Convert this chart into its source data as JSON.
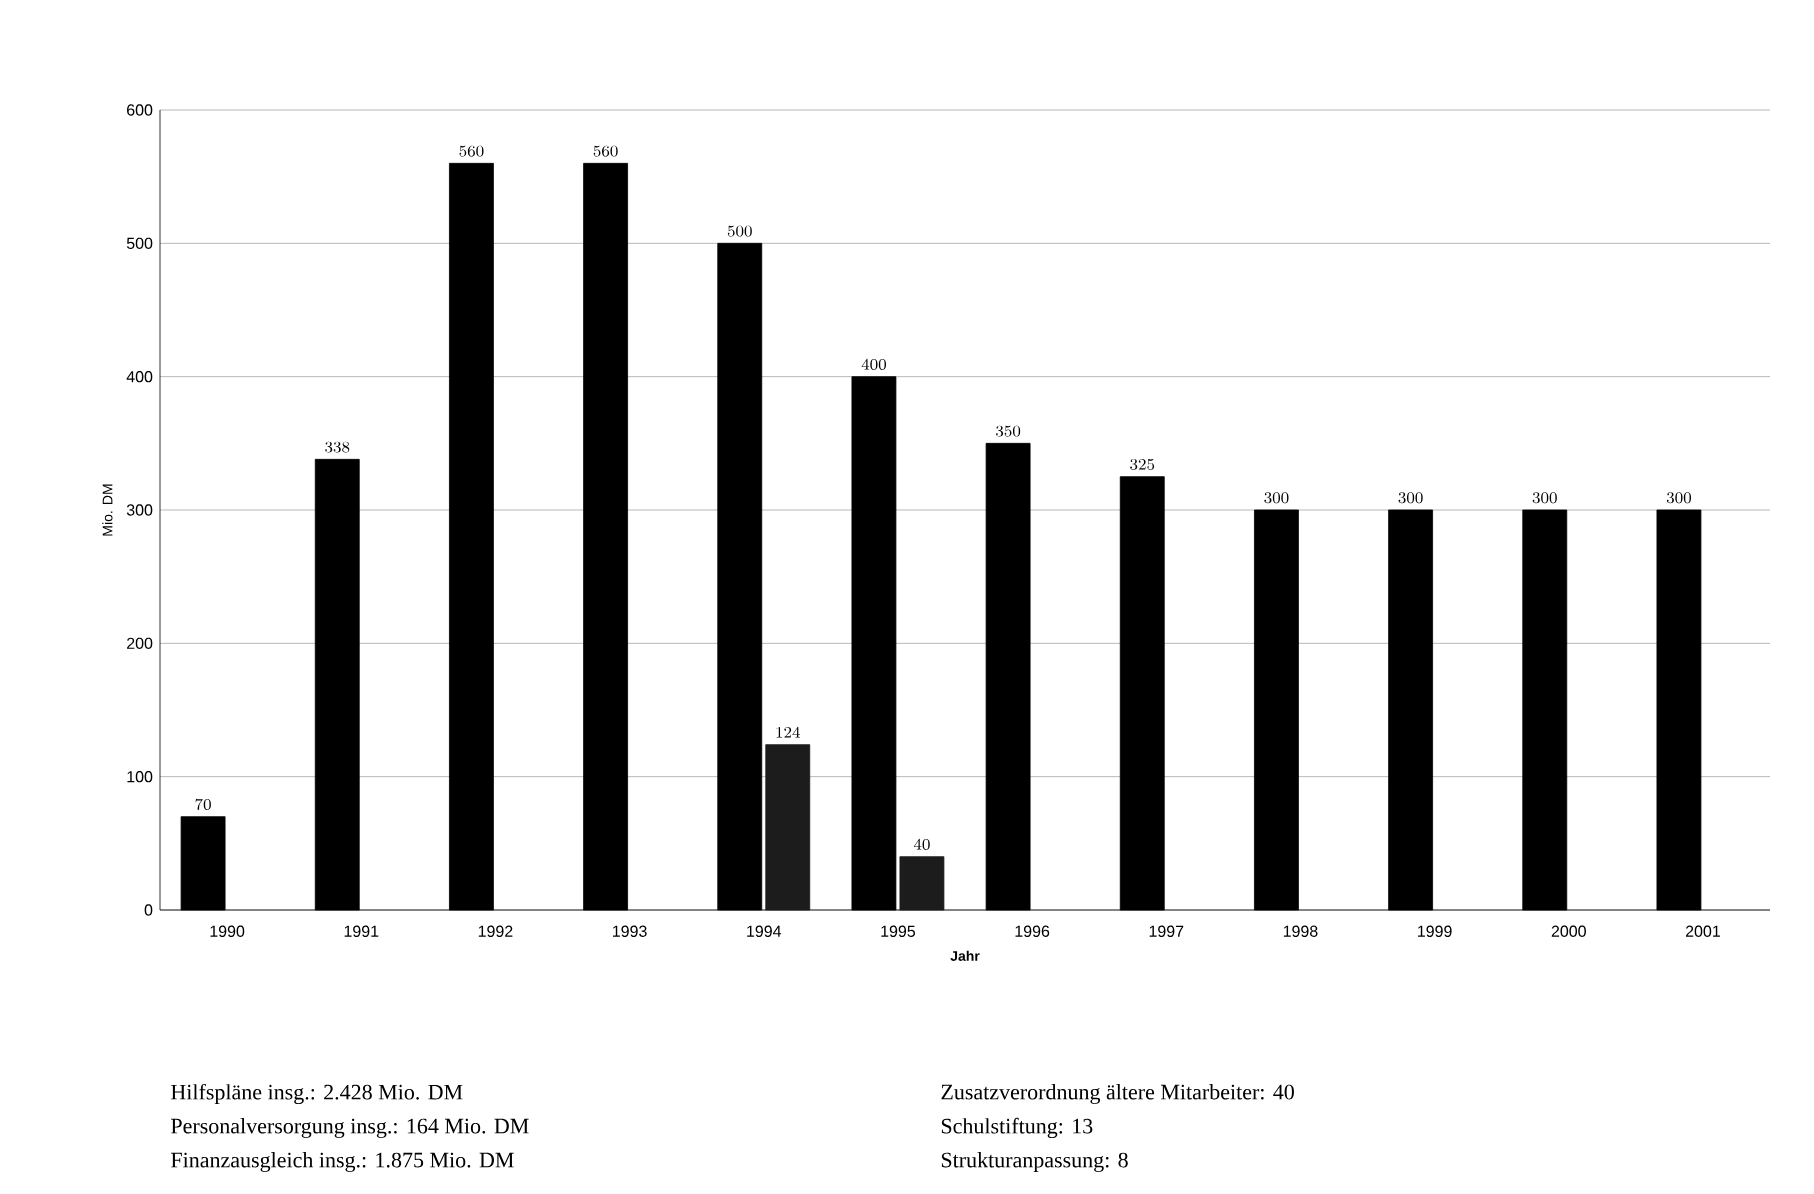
{
  "chart_data": {
    "type": "bar",
    "categories": [
      "1990",
      "1991",
      "1992",
      "1993",
      "1994",
      "1995",
      "1996",
      "1997",
      "1998",
      "1999",
      "2000",
      "2001"
    ],
    "series": [
      {
        "color": "#000000",
        "values": [
          70,
          338,
          560,
          560,
          500,
          400,
          350,
          325,
          300,
          300,
          300,
          300
        ]
      },
      {
        "color": "#1c1c1c",
        "values": [
          null,
          null,
          null,
          null,
          124,
          40,
          null,
          null,
          null,
          null,
          null,
          null
        ]
      }
    ],
    "xlabel": "Jahr",
    "ylabel": "Mio. DM",
    "ylim": [
      0,
      600
    ],
    "yticks": [
      0,
      100,
      200,
      300,
      400,
      500,
      600
    ],
    "grid": "y",
    "data_labels": true,
    "annotations": [
      "Hilfspläne insg.: 2.428 Mio. DM",
      "Personalversorgung insg.: 164 Mio. DM",
      "Finanzausgleich insg.: 1.875 Mio. DM",
      "Zusatzverordnung ältere Mitarbeiter: 40",
      "Schulstiftung: 13",
      "Strukturanpassung: 8"
    ]
  }
}
